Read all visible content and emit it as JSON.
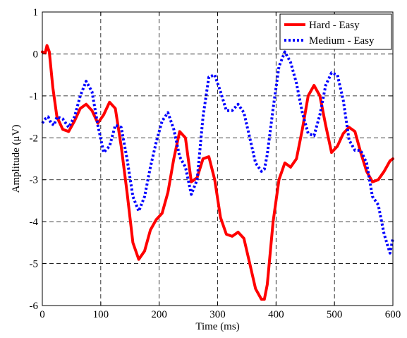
{
  "chart_data": {
    "type": "line",
    "title": "",
    "xlabel": "Time (ms)",
    "ylabel": "Amplitude (μV)",
    "xlim": [
      0,
      600
    ],
    "ylim": [
      -6,
      1
    ],
    "xticks": [
      0,
      100,
      200,
      300,
      400,
      500,
      600
    ],
    "yticks": [
      1,
      0,
      -1,
      -2,
      -3,
      -4,
      -5,
      -6
    ],
    "xtick_labels": [
      "0",
      "100",
      "200",
      "300",
      "400",
      "500",
      "600"
    ],
    "ytick_labels": [
      "1",
      "0",
      "-1",
      "-2",
      "-3",
      "-4",
      "-5",
      "-6"
    ],
    "grid": true,
    "legend_position": "top-right",
    "series": [
      {
        "name": "Hard - Easy",
        "color": "#ff0000",
        "style": "solid",
        "x": [
          0,
          5,
          8,
          12,
          18,
          25,
          35,
          45,
          55,
          65,
          75,
          85,
          95,
          105,
          115,
          125,
          135,
          145,
          155,
          165,
          175,
          185,
          195,
          205,
          215,
          225,
          235,
          245,
          255,
          265,
          275,
          285,
          295,
          305,
          315,
          325,
          335,
          345,
          355,
          365,
          375,
          380,
          385,
          395,
          405,
          415,
          425,
          435,
          445,
          455,
          465,
          475,
          485,
          495,
          505,
          515,
          525,
          535,
          545,
          555,
          565,
          575,
          585,
          595,
          600
        ],
        "y": [
          0.05,
          0.02,
          0.2,
          0.05,
          -0.8,
          -1.5,
          -1.8,
          -1.85,
          -1.6,
          -1.3,
          -1.2,
          -1.35,
          -1.65,
          -1.45,
          -1.15,
          -1.3,
          -2.2,
          -3.3,
          -4.5,
          -4.9,
          -4.7,
          -4.2,
          -3.95,
          -3.8,
          -3.3,
          -2.5,
          -1.85,
          -2.0,
          -3.05,
          -2.95,
          -2.5,
          -2.45,
          -3.0,
          -3.9,
          -4.3,
          -4.35,
          -4.25,
          -4.4,
          -5.0,
          -5.6,
          -5.85,
          -5.85,
          -5.5,
          -4.0,
          -3.0,
          -2.6,
          -2.7,
          -2.5,
          -1.8,
          -1.0,
          -0.75,
          -1.0,
          -1.7,
          -2.35,
          -2.2,
          -1.9,
          -1.75,
          -1.85,
          -2.35,
          -2.8,
          -3.05,
          -3.0,
          -2.8,
          -2.55,
          -2.5
        ]
      },
      {
        "name": "Medium - Easy",
        "color": "#0000ff",
        "style": "dotted",
        "x": [
          0,
          5,
          10,
          15,
          20,
          25,
          35,
          45,
          55,
          65,
          75,
          85,
          95,
          105,
          115,
          125,
          135,
          145,
          155,
          165,
          175,
          185,
          195,
          205,
          215,
          225,
          235,
          245,
          255,
          265,
          275,
          285,
          295,
          305,
          315,
          325,
          335,
          345,
          355,
          365,
          375,
          380,
          385,
          395,
          405,
          415,
          425,
          435,
          445,
          455,
          465,
          475,
          485,
          495,
          505,
          515,
          525,
          535,
          545,
          555,
          565,
          575,
          585,
          595,
          600
        ],
        "y": [
          -1.65,
          -1.55,
          -1.5,
          -1.65,
          -1.7,
          -1.5,
          -1.55,
          -1.75,
          -1.5,
          -1.0,
          -0.65,
          -0.9,
          -1.7,
          -2.35,
          -2.2,
          -1.7,
          -1.75,
          -2.5,
          -3.4,
          -3.75,
          -3.4,
          -2.7,
          -2.1,
          -1.6,
          -1.4,
          -1.8,
          -2.45,
          -2.7,
          -3.35,
          -3.0,
          -1.5,
          -0.55,
          -0.5,
          -0.9,
          -1.35,
          -1.35,
          -1.2,
          -1.4,
          -2.0,
          -2.6,
          -2.8,
          -2.75,
          -2.4,
          -1.3,
          -0.3,
          0.05,
          -0.2,
          -0.7,
          -1.4,
          -1.9,
          -1.95,
          -1.45,
          -0.75,
          -0.45,
          -0.5,
          -1.1,
          -2.05,
          -2.3,
          -2.3,
          -2.6,
          -3.4,
          -3.6,
          -4.3,
          -4.75,
          -4.4
        ]
      }
    ]
  }
}
